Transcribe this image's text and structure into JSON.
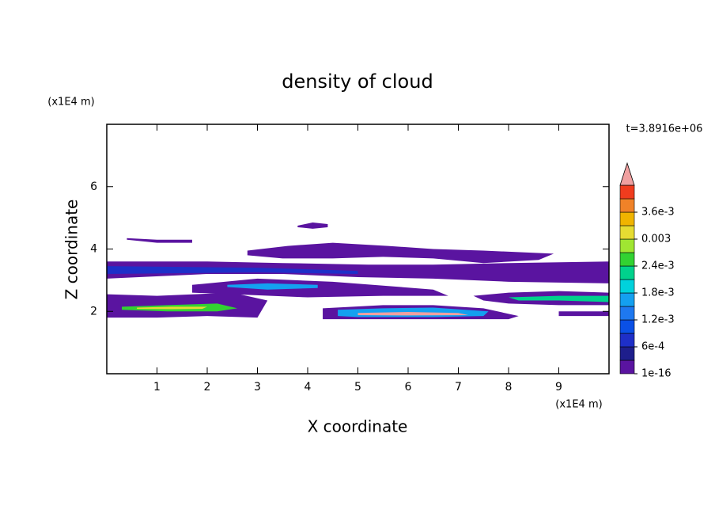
{
  "chart_data": {
    "type": "contour",
    "title": "density of cloud",
    "xlabel": "X coordinate",
    "ylabel": "Z coordinate",
    "xunit": "(x1E4 m)",
    "yunit": "(x1E4 m)",
    "annotation": "t=3.8916e+06",
    "xlim": [
      0,
      10
    ],
    "ylim": [
      0,
      8
    ],
    "xticks": [
      1,
      2,
      3,
      4,
      5,
      6,
      7,
      8,
      9
    ],
    "yticks": [
      2,
      4,
      6
    ],
    "colorbar": {
      "lim": [
        0,
        0.0042
      ],
      "step": 0.0003,
      "ticks": [
        {
          "value": 1e-16,
          "label": "1e-16"
        },
        {
          "value": 0.0006,
          "label": "6e-4"
        },
        {
          "value": 0.0012,
          "label": "1.2e-3"
        },
        {
          "value": 0.0018,
          "label": "1.8e-3"
        },
        {
          "value": 0.0024,
          "label": "2.4e-3"
        },
        {
          "value": 0.003,
          "label": "0.003"
        },
        {
          "value": 0.0036,
          "label": "3.6e-3"
        }
      ],
      "colors": [
        "#5a14a0",
        "#1e1e8c",
        "#1e2fc8",
        "#0a50e6",
        "#1e78f0",
        "#14a0f0",
        "#00d2dc",
        "#00d28c",
        "#32d232",
        "#a0e632",
        "#e6dc32",
        "#f0b400",
        "#f08228",
        "#f03c1e",
        "#f0a0a0"
      ]
    },
    "regions": [
      {
        "value": 0.0001,
        "x": [
          0,
          2,
          3.5,
          5.2,
          6.5,
          8,
          10,
          10,
          8,
          6.5,
          5,
          3.5,
          2,
          0
        ],
        "z": [
          3.6,
          3.6,
          3.55,
          3.5,
          3.5,
          3.55,
          3.6,
          2.9,
          2.95,
          3.05,
          3.1,
          3.2,
          3.2,
          3.05
        ]
      },
      {
        "value": 0.0001,
        "x": [
          2.8,
          3.6,
          4.5,
          5.6,
          6.5,
          7.5,
          8.9,
          8.6,
          7.5,
          6.5,
          5.5,
          4.5,
          3.5,
          2.8
        ],
        "z": [
          3.95,
          4.1,
          4.2,
          4.1,
          4.0,
          3.95,
          3.85,
          3.65,
          3.55,
          3.7,
          3.75,
          3.7,
          3.7,
          3.8
        ]
      },
      {
        "value": 0.0001,
        "x": [
          0.4,
          1.0,
          1.7,
          1.7,
          1.0,
          0.4
        ],
        "z": [
          4.35,
          4.3,
          4.3,
          4.2,
          4.2,
          4.3
        ]
      },
      {
        "value": 0.0001,
        "x": [
          3.8,
          4.1,
          4.4,
          4.4,
          4.1,
          3.8
        ],
        "z": [
          4.75,
          4.85,
          4.8,
          4.7,
          4.65,
          4.7
        ]
      },
      {
        "value": 0.0001,
        "x": [
          0,
          1,
          2.5,
          3.2,
          3.0,
          2.0,
          1,
          0
        ],
        "z": [
          2.55,
          2.5,
          2.6,
          2.35,
          1.8,
          1.85,
          1.8,
          1.8
        ]
      },
      {
        "value": 0.0001,
        "x": [
          1.7,
          3,
          4.5,
          6.5,
          6.8,
          5.5,
          4,
          2.5,
          1.7
        ],
        "z": [
          2.85,
          3.05,
          2.95,
          2.7,
          2.5,
          2.5,
          2.45,
          2.55,
          2.6
        ]
      },
      {
        "value": 0.0001,
        "x": [
          4.3,
          5.5,
          6.5,
          7.5,
          8.2,
          8.0,
          6.5,
          5,
          4.3
        ],
        "z": [
          2.1,
          2.2,
          2.2,
          2.1,
          1.85,
          1.75,
          1.75,
          1.75,
          1.75
        ]
      },
      {
        "value": 0.0001,
        "x": [
          7.3,
          8,
          9,
          10,
          10,
          9,
          8,
          7.5
        ],
        "z": [
          2.5,
          2.6,
          2.65,
          2.6,
          2.2,
          2.2,
          2.25,
          2.35
        ]
      },
      {
        "value": 0.0001,
        "x": [
          9.0,
          10,
          10,
          9.0
        ],
        "z": [
          2.0,
          2.0,
          1.85,
          1.85
        ]
      },
      {
        "value": 0.0008,
        "x": [
          0,
          3,
          5,
          5,
          3,
          0
        ],
        "z": [
          3.45,
          3.4,
          3.3,
          3.2,
          3.25,
          3.2
        ]
      },
      {
        "value": 0.0017,
        "x": [
          2.4,
          3.2,
          4.2,
          4.2,
          3.2,
          2.4
        ],
        "z": [
          2.85,
          2.9,
          2.85,
          2.75,
          2.7,
          2.78
        ]
      },
      {
        "value": 0.0024,
        "x": [
          0.3,
          1.2,
          2.2,
          2.6,
          2.2,
          1.2,
          0.3
        ],
        "z": [
          2.15,
          2.2,
          2.25,
          2.1,
          2.0,
          2.0,
          2.05
        ]
      },
      {
        "value": 0.0031,
        "x": [
          0.6,
          1.3,
          2.0,
          1.9,
          1.3,
          0.6
        ],
        "z": [
          2.12,
          2.15,
          2.15,
          2.08,
          2.07,
          2.08
        ]
      },
      {
        "value": 0.0015,
        "x": [
          4.6,
          5.5,
          6.5,
          7.6,
          7.5,
          6.5,
          5,
          4.6
        ],
        "z": [
          2.05,
          2.1,
          2.12,
          2.0,
          1.85,
          1.82,
          1.82,
          1.85
        ]
      },
      {
        "value": 0.0045,
        "x": [
          5,
          6,
          7,
          7.2,
          6,
          5
        ],
        "z": [
          1.95,
          1.98,
          1.95,
          1.88,
          1.87,
          1.88
        ]
      },
      {
        "value": 0.0022,
        "x": [
          8,
          9,
          10,
          10,
          9,
          8.2
        ],
        "z": [
          2.45,
          2.5,
          2.5,
          2.3,
          2.35,
          2.35
        ]
      }
    ]
  }
}
